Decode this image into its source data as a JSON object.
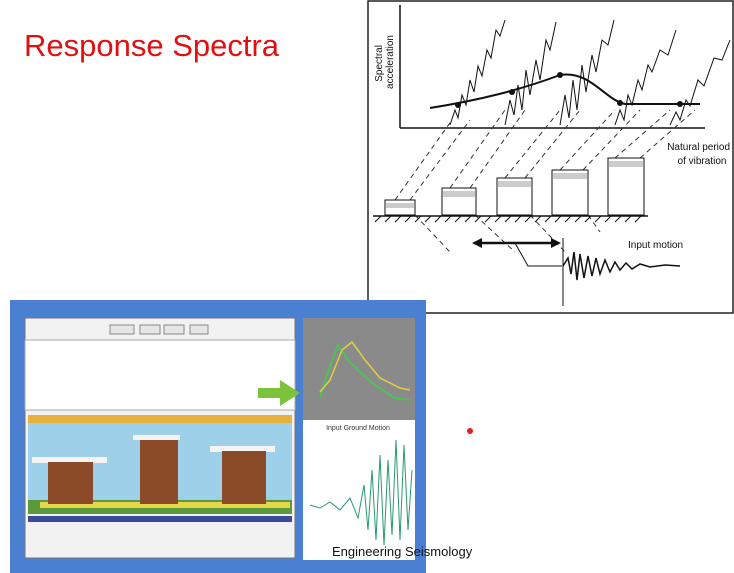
{
  "slide": {
    "title": "Response Spectra",
    "footer": "Engineering Seismology"
  },
  "diagram": {
    "y_axis_label": [
      "Spectral",
      "acceleration"
    ],
    "x_axis_label": [
      "Natural period",
      "of vibration"
    ],
    "input_label": "Input motion"
  },
  "screenshot": {
    "graph_label": "Input Ground Motion"
  }
}
